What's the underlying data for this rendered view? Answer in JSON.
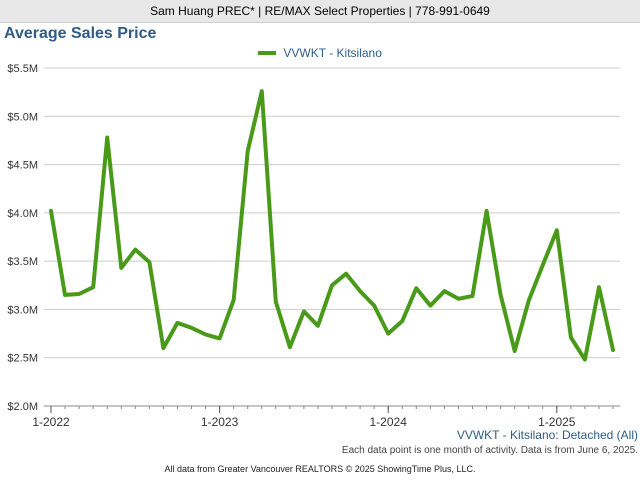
{
  "header": {
    "banner": "Sam Huang PREC* | RE/MAX Select Properties | 778-991-0649"
  },
  "chart_data": {
    "type": "line",
    "title": "Average Sales Price",
    "xlabel": "",
    "ylabel": "",
    "x": [
      "2022-01",
      "2022-02",
      "2022-03",
      "2022-04",
      "2022-05",
      "2022-06",
      "2022-07",
      "2022-08",
      "2022-09",
      "2022-10",
      "2022-11",
      "2022-12",
      "2023-01",
      "2023-02",
      "2023-03",
      "2023-04",
      "2023-05",
      "2023-06",
      "2023-07",
      "2023-08",
      "2023-09",
      "2023-10",
      "2023-11",
      "2023-12",
      "2024-01",
      "2024-02",
      "2024-03",
      "2024-04",
      "2024-05",
      "2024-06",
      "2024-07",
      "2024-08",
      "2024-09",
      "2024-10",
      "2024-11",
      "2024-12",
      "2025-01",
      "2025-02",
      "2025-03",
      "2025-04",
      "2025-05"
    ],
    "series": [
      {
        "name": "VVWKT - Kitsilano",
        "color": "#4a9a1a",
        "values": [
          4020000,
          3150000,
          3160000,
          3230000,
          4780000,
          3430000,
          3620000,
          3490000,
          2600000,
          2860000,
          2810000,
          2740000,
          2700000,
          3100000,
          4640000,
          5260000,
          3080000,
          2610000,
          2980000,
          2830000,
          3250000,
          3370000,
          3190000,
          3040000,
          2750000,
          2880000,
          3220000,
          3040000,
          3190000,
          3110000,
          3140000,
          4020000,
          3150000,
          2570000,
          3090000,
          3460000,
          3820000,
          2710000,
          2480000,
          3230000,
          2580000
        ]
      }
    ],
    "ylim": [
      2000000,
      5500000
    ],
    "y_ticks": [
      "$2.0M",
      "$2.5M",
      "$3.0M",
      "$3.5M",
      "$4.0M",
      "$4.5M",
      "$5.0M",
      "$5.5M"
    ],
    "x_ticks": [
      "1-2022",
      "1-2023",
      "1-2024",
      "1-2025"
    ],
    "grid": true,
    "legend_position": "top"
  },
  "notes": {
    "series_name": "VVWKT - Kitsilano: Detached (All)",
    "data_note": "Each data point is one month of activity. Data is from June 6, 2025.",
    "footer": "All data from Greater Vancouver REALTORS © 2025 ShowingTime Plus, LLC."
  }
}
